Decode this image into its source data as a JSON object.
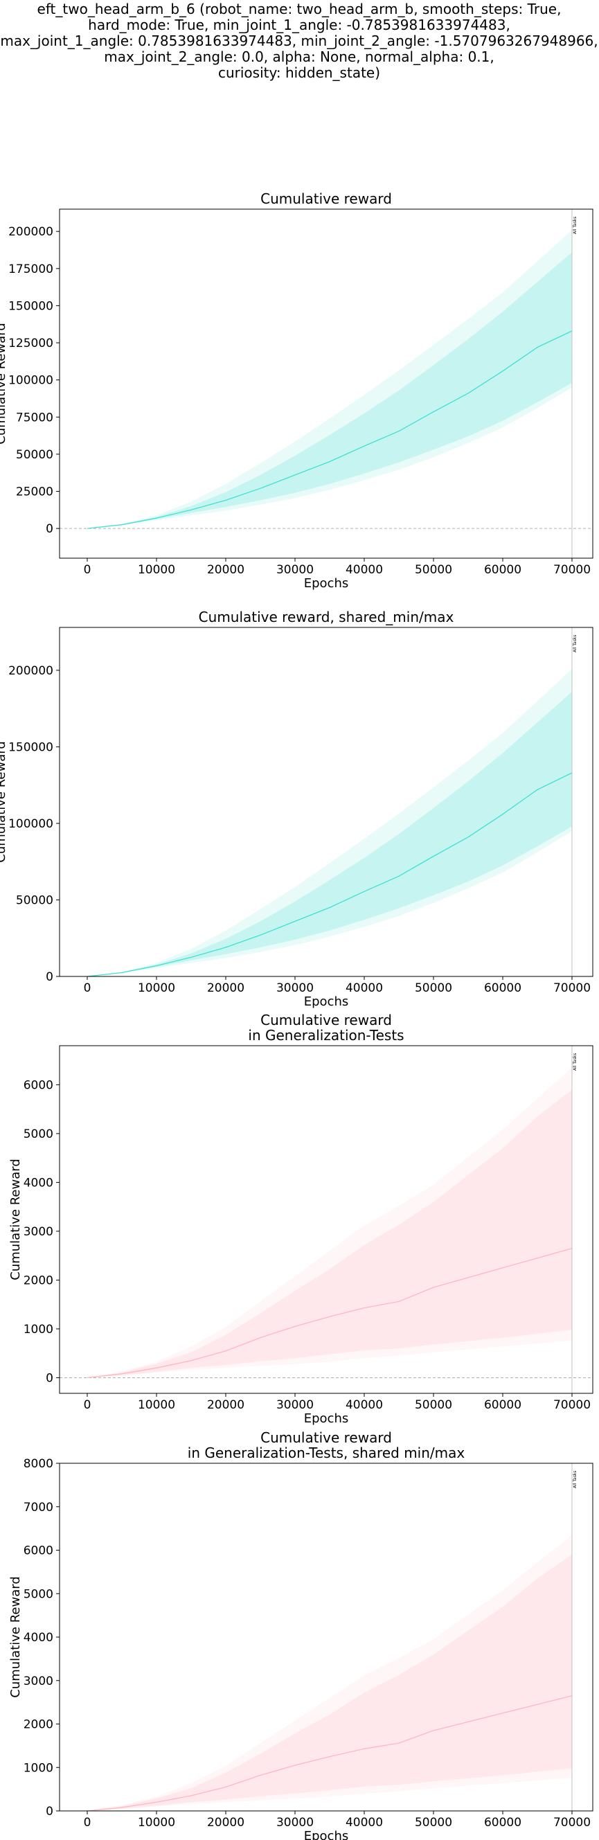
{
  "figure": {
    "suptitle_lines": [
      "eft_two_head_arm_b_6 (robot_name: two_head_arm_b, smooth_steps: True,",
      "hard_mode: True, min_joint_1_angle: -0.7853981633974483,",
      "max_joint_1_angle: 0.7853981633974483, min_joint_2_angle: -1.5707963267948966,",
      "max_joint_2_angle: 0.0, alpha: None, normal_alpha: 0.1,",
      "curiosity: hidden_state)"
    ]
  },
  "chart_data": [
    {
      "type": "line",
      "title_lines": [
        "Cumulative reward"
      ],
      "xlabel": "Epochs",
      "ylabel": "Cumulative Reward",
      "xlim": [
        -4000,
        73000
      ],
      "ylim": [
        -20000,
        215000
      ],
      "xticks": [
        0,
        10000,
        20000,
        30000,
        40000,
        50000,
        60000,
        70000
      ],
      "yticks": [
        0,
        25000,
        50000,
        75000,
        100000,
        125000,
        150000,
        175000,
        200000
      ],
      "zero_line": true,
      "vline": {
        "x": 70000,
        "label": "All Tasks"
      },
      "color": "#40e0d0",
      "series": [
        {
          "x": [
            0,
            5000,
            10000,
            15000,
            20000,
            25000,
            30000,
            35000,
            40000,
            45000,
            50000,
            55000,
            60000,
            65000,
            70000
          ],
          "mean": [
            0,
            2500,
            7000,
            12500,
            19000,
            27000,
            36000,
            45000,
            55500,
            65500,
            78500,
            91000,
            106000,
            122000,
            133000
          ],
          "std_low": [
            0,
            2300,
            6200,
            10500,
            14500,
            19000,
            24000,
            30000,
            37000,
            44500,
            53000,
            62000,
            72500,
            85000,
            98000
          ],
          "std_high": [
            0,
            2700,
            7800,
            15000,
            24500,
            36000,
            49000,
            63000,
            77500,
            93000,
            110000,
            127500,
            146000,
            166000,
            186000
          ],
          "min": [
            0,
            2100,
            5500,
            8800,
            12000,
            16000,
            20500,
            26000,
            32500,
            39500,
            48000,
            57500,
            68000,
            81000,
            95000
          ],
          "max": [
            0,
            2900,
            8800,
            18000,
            30000,
            44000,
            58500,
            74000,
            90000,
            106500,
            123500,
            141000,
            159000,
            180000,
            201000
          ]
        }
      ]
    },
    {
      "type": "line",
      "title_lines": [
        "Cumulative reward, shared_min/max"
      ],
      "xlabel": "Epochs",
      "ylabel": "Cumulative Reward",
      "xlim": [
        -4000,
        73000
      ],
      "ylim": [
        0,
        228000
      ],
      "xticks": [
        0,
        10000,
        20000,
        30000,
        40000,
        50000,
        60000,
        70000
      ],
      "yticks": [
        0,
        50000,
        100000,
        150000,
        200000
      ],
      "zero_line": false,
      "vline": {
        "x": 70000,
        "label": "All Tasks"
      },
      "color": "#40e0d0",
      "series": [
        {
          "x": [
            0,
            5000,
            10000,
            15000,
            20000,
            25000,
            30000,
            35000,
            40000,
            45000,
            50000,
            55000,
            60000,
            65000,
            70000
          ],
          "mean": [
            0,
            2500,
            7000,
            12500,
            19000,
            27000,
            36000,
            45000,
            55500,
            65500,
            78500,
            91000,
            106000,
            122000,
            133000
          ],
          "std_low": [
            0,
            2300,
            6200,
            10500,
            14500,
            19000,
            24000,
            30000,
            37000,
            44500,
            53000,
            62000,
            72500,
            85000,
            98000
          ],
          "std_high": [
            0,
            2700,
            7800,
            15000,
            24500,
            36000,
            49000,
            63000,
            77500,
            93000,
            110000,
            127500,
            146000,
            166000,
            186000
          ],
          "min": [
            0,
            2100,
            5500,
            8800,
            12000,
            16000,
            20500,
            26000,
            32500,
            39500,
            48000,
            57500,
            68000,
            81000,
            95000
          ],
          "max": [
            0,
            2900,
            8800,
            18000,
            30000,
            44000,
            58500,
            74000,
            90000,
            106500,
            123500,
            141000,
            159000,
            180000,
            201000
          ]
        }
      ]
    },
    {
      "type": "line",
      "title_lines": [
        "Cumulative reward",
        "in Generalization-Tests"
      ],
      "xlabel": "Epochs",
      "ylabel": "Cumulative Reward",
      "xlim": [
        -4000,
        73000
      ],
      "ylim": [
        -320,
        6800
      ],
      "xticks": [
        0,
        10000,
        20000,
        30000,
        40000,
        50000,
        60000,
        70000
      ],
      "yticks": [
        0,
        1000,
        2000,
        3000,
        4000,
        5000,
        6000
      ],
      "zero_line": true,
      "vline": {
        "x": 70000,
        "label": "All Tasks"
      },
      "color": "#ffb6c1",
      "series": [
        {
          "x": [
            0,
            5000,
            10000,
            15000,
            20000,
            25000,
            30000,
            35000,
            40000,
            45000,
            50000,
            55000,
            60000,
            65000,
            70000
          ],
          "mean": [
            0,
            80,
            200,
            350,
            550,
            820,
            1050,
            1250,
            1430,
            1560,
            1850,
            2050,
            2250,
            2450,
            2650
          ],
          "std_low": [
            0,
            50,
            120,
            200,
            260,
            340,
            400,
            480,
            560,
            600,
            680,
            750,
            820,
            900,
            980
          ],
          "std_high": [
            0,
            110,
            290,
            520,
            880,
            1320,
            1780,
            2220,
            2720,
            3130,
            3600,
            4150,
            4700,
            5350,
            5900
          ],
          "min": [
            0,
            40,
            100,
            160,
            200,
            240,
            280,
            330,
            400,
            450,
            520,
            580,
            640,
            700,
            760
          ],
          "max": [
            0,
            130,
            330,
            640,
            1040,
            1560,
            2080,
            2600,
            3120,
            3520,
            3950,
            4520,
            5080,
            5720,
            6350
          ]
        }
      ]
    },
    {
      "type": "line",
      "title_lines": [
        "Cumulative reward",
        "in Generalization-Tests, shared min/max"
      ],
      "xlabel": "Epochs",
      "ylabel": "Cumulative Reward",
      "xlim": [
        -4000,
        73000
      ],
      "ylim": [
        0,
        8000
      ],
      "xticks": [
        0,
        10000,
        20000,
        30000,
        40000,
        50000,
        60000,
        70000
      ],
      "yticks": [
        0,
        1000,
        2000,
        3000,
        4000,
        5000,
        6000,
        7000,
        8000
      ],
      "zero_line": false,
      "vline": {
        "x": 70000,
        "label": "All Tasks"
      },
      "color": "#ffb6c1",
      "series": [
        {
          "x": [
            0,
            5000,
            10000,
            15000,
            20000,
            25000,
            30000,
            35000,
            40000,
            45000,
            50000,
            55000,
            60000,
            65000,
            70000
          ],
          "mean": [
            0,
            80,
            200,
            350,
            550,
            820,
            1050,
            1250,
            1430,
            1560,
            1850,
            2050,
            2250,
            2450,
            2650
          ],
          "std_low": [
            0,
            50,
            120,
            200,
            260,
            340,
            400,
            480,
            560,
            600,
            680,
            750,
            820,
            900,
            980
          ],
          "std_high": [
            0,
            110,
            290,
            520,
            880,
            1320,
            1780,
            2220,
            2720,
            3130,
            3600,
            4150,
            4700,
            5350,
            5900
          ],
          "min": [
            0,
            40,
            100,
            160,
            200,
            240,
            280,
            330,
            400,
            450,
            520,
            580,
            640,
            700,
            760
          ],
          "max": [
            0,
            130,
            330,
            640,
            1040,
            1560,
            2080,
            2600,
            3120,
            3520,
            3950,
            4520,
            5080,
            5720,
            6350
          ]
        }
      ]
    }
  ]
}
